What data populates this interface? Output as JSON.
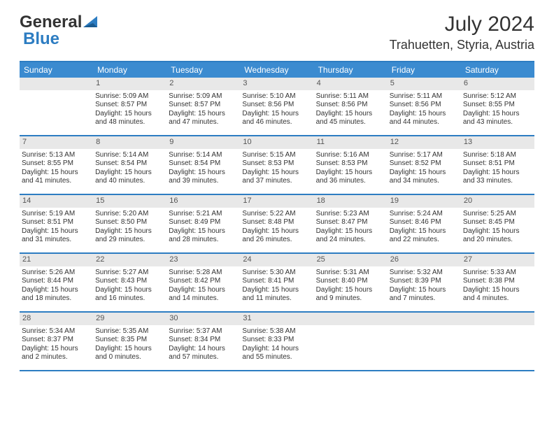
{
  "logo": {
    "text1": "General",
    "text2": "Blue"
  },
  "title": "July 2024",
  "location": "Trahuetten, Styria, Austria",
  "colors": {
    "header_bg": "#3b8bd0",
    "border": "#2d7dc2",
    "daynum_bg": "#e8e8e8",
    "text": "#333333"
  },
  "weekdays": [
    "Sunday",
    "Monday",
    "Tuesday",
    "Wednesday",
    "Thursday",
    "Friday",
    "Saturday"
  ],
  "weeks": [
    [
      {
        "n": "",
        "lines": []
      },
      {
        "n": "1",
        "lines": [
          "Sunrise: 5:09 AM",
          "Sunset: 8:57 PM",
          "Daylight: 15 hours",
          "and 48 minutes."
        ]
      },
      {
        "n": "2",
        "lines": [
          "Sunrise: 5:09 AM",
          "Sunset: 8:57 PM",
          "Daylight: 15 hours",
          "and 47 minutes."
        ]
      },
      {
        "n": "3",
        "lines": [
          "Sunrise: 5:10 AM",
          "Sunset: 8:56 PM",
          "Daylight: 15 hours",
          "and 46 minutes."
        ]
      },
      {
        "n": "4",
        "lines": [
          "Sunrise: 5:11 AM",
          "Sunset: 8:56 PM",
          "Daylight: 15 hours",
          "and 45 minutes."
        ]
      },
      {
        "n": "5",
        "lines": [
          "Sunrise: 5:11 AM",
          "Sunset: 8:56 PM",
          "Daylight: 15 hours",
          "and 44 minutes."
        ]
      },
      {
        "n": "6",
        "lines": [
          "Sunrise: 5:12 AM",
          "Sunset: 8:55 PM",
          "Daylight: 15 hours",
          "and 43 minutes."
        ]
      }
    ],
    [
      {
        "n": "7",
        "lines": [
          "Sunrise: 5:13 AM",
          "Sunset: 8:55 PM",
          "Daylight: 15 hours",
          "and 41 minutes."
        ]
      },
      {
        "n": "8",
        "lines": [
          "Sunrise: 5:14 AM",
          "Sunset: 8:54 PM",
          "Daylight: 15 hours",
          "and 40 minutes."
        ]
      },
      {
        "n": "9",
        "lines": [
          "Sunrise: 5:14 AM",
          "Sunset: 8:54 PM",
          "Daylight: 15 hours",
          "and 39 minutes."
        ]
      },
      {
        "n": "10",
        "lines": [
          "Sunrise: 5:15 AM",
          "Sunset: 8:53 PM",
          "Daylight: 15 hours",
          "and 37 minutes."
        ]
      },
      {
        "n": "11",
        "lines": [
          "Sunrise: 5:16 AM",
          "Sunset: 8:53 PM",
          "Daylight: 15 hours",
          "and 36 minutes."
        ]
      },
      {
        "n": "12",
        "lines": [
          "Sunrise: 5:17 AM",
          "Sunset: 8:52 PM",
          "Daylight: 15 hours",
          "and 34 minutes."
        ]
      },
      {
        "n": "13",
        "lines": [
          "Sunrise: 5:18 AM",
          "Sunset: 8:51 PM",
          "Daylight: 15 hours",
          "and 33 minutes."
        ]
      }
    ],
    [
      {
        "n": "14",
        "lines": [
          "Sunrise: 5:19 AM",
          "Sunset: 8:51 PM",
          "Daylight: 15 hours",
          "and 31 minutes."
        ]
      },
      {
        "n": "15",
        "lines": [
          "Sunrise: 5:20 AM",
          "Sunset: 8:50 PM",
          "Daylight: 15 hours",
          "and 29 minutes."
        ]
      },
      {
        "n": "16",
        "lines": [
          "Sunrise: 5:21 AM",
          "Sunset: 8:49 PM",
          "Daylight: 15 hours",
          "and 28 minutes."
        ]
      },
      {
        "n": "17",
        "lines": [
          "Sunrise: 5:22 AM",
          "Sunset: 8:48 PM",
          "Daylight: 15 hours",
          "and 26 minutes."
        ]
      },
      {
        "n": "18",
        "lines": [
          "Sunrise: 5:23 AM",
          "Sunset: 8:47 PM",
          "Daylight: 15 hours",
          "and 24 minutes."
        ]
      },
      {
        "n": "19",
        "lines": [
          "Sunrise: 5:24 AM",
          "Sunset: 8:46 PM",
          "Daylight: 15 hours",
          "and 22 minutes."
        ]
      },
      {
        "n": "20",
        "lines": [
          "Sunrise: 5:25 AM",
          "Sunset: 8:45 PM",
          "Daylight: 15 hours",
          "and 20 minutes."
        ]
      }
    ],
    [
      {
        "n": "21",
        "lines": [
          "Sunrise: 5:26 AM",
          "Sunset: 8:44 PM",
          "Daylight: 15 hours",
          "and 18 minutes."
        ]
      },
      {
        "n": "22",
        "lines": [
          "Sunrise: 5:27 AM",
          "Sunset: 8:43 PM",
          "Daylight: 15 hours",
          "and 16 minutes."
        ]
      },
      {
        "n": "23",
        "lines": [
          "Sunrise: 5:28 AM",
          "Sunset: 8:42 PM",
          "Daylight: 15 hours",
          "and 14 minutes."
        ]
      },
      {
        "n": "24",
        "lines": [
          "Sunrise: 5:30 AM",
          "Sunset: 8:41 PM",
          "Daylight: 15 hours",
          "and 11 minutes."
        ]
      },
      {
        "n": "25",
        "lines": [
          "Sunrise: 5:31 AM",
          "Sunset: 8:40 PM",
          "Daylight: 15 hours",
          "and 9 minutes."
        ]
      },
      {
        "n": "26",
        "lines": [
          "Sunrise: 5:32 AM",
          "Sunset: 8:39 PM",
          "Daylight: 15 hours",
          "and 7 minutes."
        ]
      },
      {
        "n": "27",
        "lines": [
          "Sunrise: 5:33 AM",
          "Sunset: 8:38 PM",
          "Daylight: 15 hours",
          "and 4 minutes."
        ]
      }
    ],
    [
      {
        "n": "28",
        "lines": [
          "Sunrise: 5:34 AM",
          "Sunset: 8:37 PM",
          "Daylight: 15 hours",
          "and 2 minutes."
        ]
      },
      {
        "n": "29",
        "lines": [
          "Sunrise: 5:35 AM",
          "Sunset: 8:35 PM",
          "Daylight: 15 hours",
          "and 0 minutes."
        ]
      },
      {
        "n": "30",
        "lines": [
          "Sunrise: 5:37 AM",
          "Sunset: 8:34 PM",
          "Daylight: 14 hours",
          "and 57 minutes."
        ]
      },
      {
        "n": "31",
        "lines": [
          "Sunrise: 5:38 AM",
          "Sunset: 8:33 PM",
          "Daylight: 14 hours",
          "and 55 minutes."
        ]
      },
      {
        "n": "",
        "lines": []
      },
      {
        "n": "",
        "lines": []
      },
      {
        "n": "",
        "lines": []
      }
    ]
  ]
}
